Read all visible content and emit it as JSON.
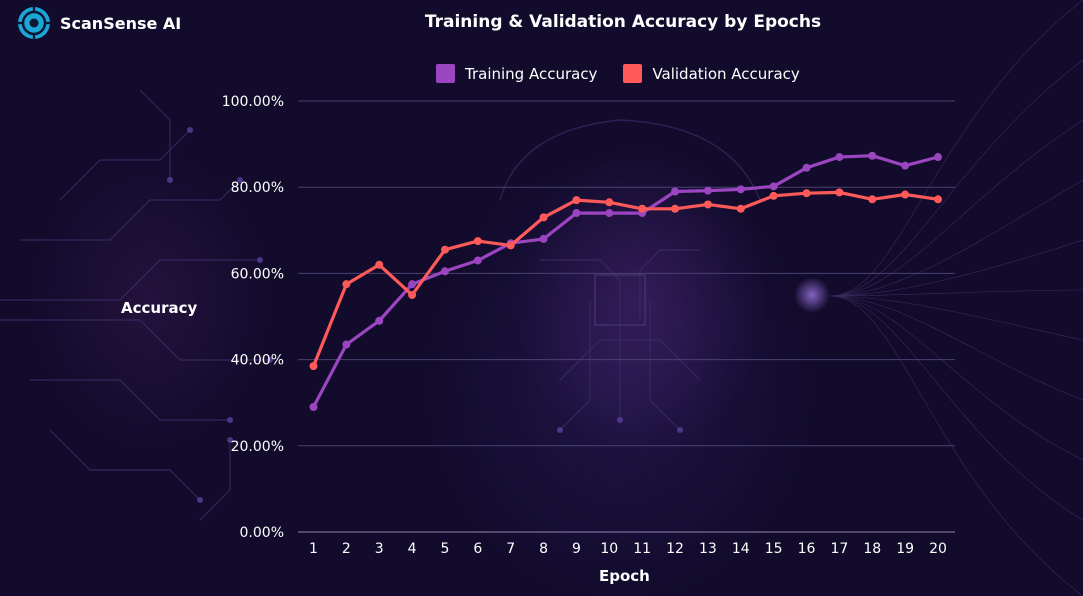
{
  "brand": {
    "name": "ScanSense AI"
  },
  "chart_data": {
    "type": "line",
    "title": "Training & Validation Accuracy by Epochs",
    "xlabel": "Epoch",
    "ylabel": "Accuracy",
    "categories": [
      "1",
      "2",
      "3",
      "4",
      "5",
      "6",
      "7",
      "8",
      "9",
      "10",
      "11",
      "12",
      "13",
      "14",
      "15",
      "16",
      "17",
      "18",
      "19",
      "20"
    ],
    "y_ticks": [
      "0.00%",
      "20.00%",
      "40.00%",
      "60.00%",
      "80.00%",
      "100.00%"
    ],
    "ylim": [
      0,
      100
    ],
    "grid": true,
    "legend_position": "top",
    "series": [
      {
        "name": "Training Accuracy",
        "color": "#9b45c0",
        "values": [
          29,
          43.5,
          49,
          57.5,
          60.5,
          63,
          67,
          68,
          74,
          74,
          74,
          79,
          79.2,
          79.5,
          80.2,
          84.5,
          87,
          87.3,
          85,
          87
        ]
      },
      {
        "name": "Validation Accuracy",
        "color": "#ff5a5a",
        "values": [
          38.5,
          57.5,
          62,
          55,
          65.5,
          67.5,
          66.5,
          73,
          77,
          76.5,
          75,
          75,
          76,
          75,
          78,
          78.6,
          78.8,
          77.2,
          78.3,
          77.2
        ]
      }
    ]
  }
}
